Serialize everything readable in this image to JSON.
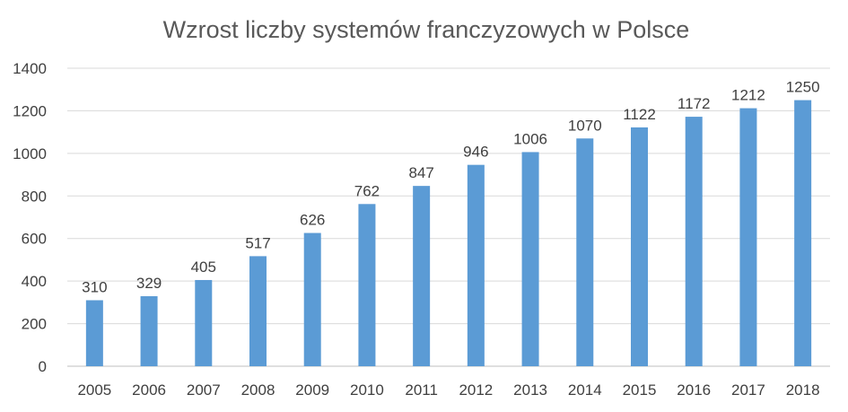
{
  "chart_data": {
    "type": "bar",
    "title": "Wzrost liczby systemów franczyzowych w Polsce",
    "xlabel": "",
    "ylabel": "",
    "categories": [
      "2005",
      "2006",
      "2007",
      "2008",
      "2009",
      "2010",
      "2011",
      "2012",
      "2013",
      "2014",
      "2015",
      "2016",
      "2017",
      "2018"
    ],
    "values": [
      310,
      329,
      405,
      517,
      626,
      762,
      847,
      946,
      1006,
      1070,
      1122,
      1172,
      1212,
      1250
    ],
    "ylim": [
      0,
      1400
    ],
    "yticks": [
      0,
      200,
      400,
      600,
      800,
      1000,
      1200,
      1400
    ],
    "grid": true,
    "legend": "none",
    "bar_color": "#5b9bd5",
    "data_labels": true
  }
}
